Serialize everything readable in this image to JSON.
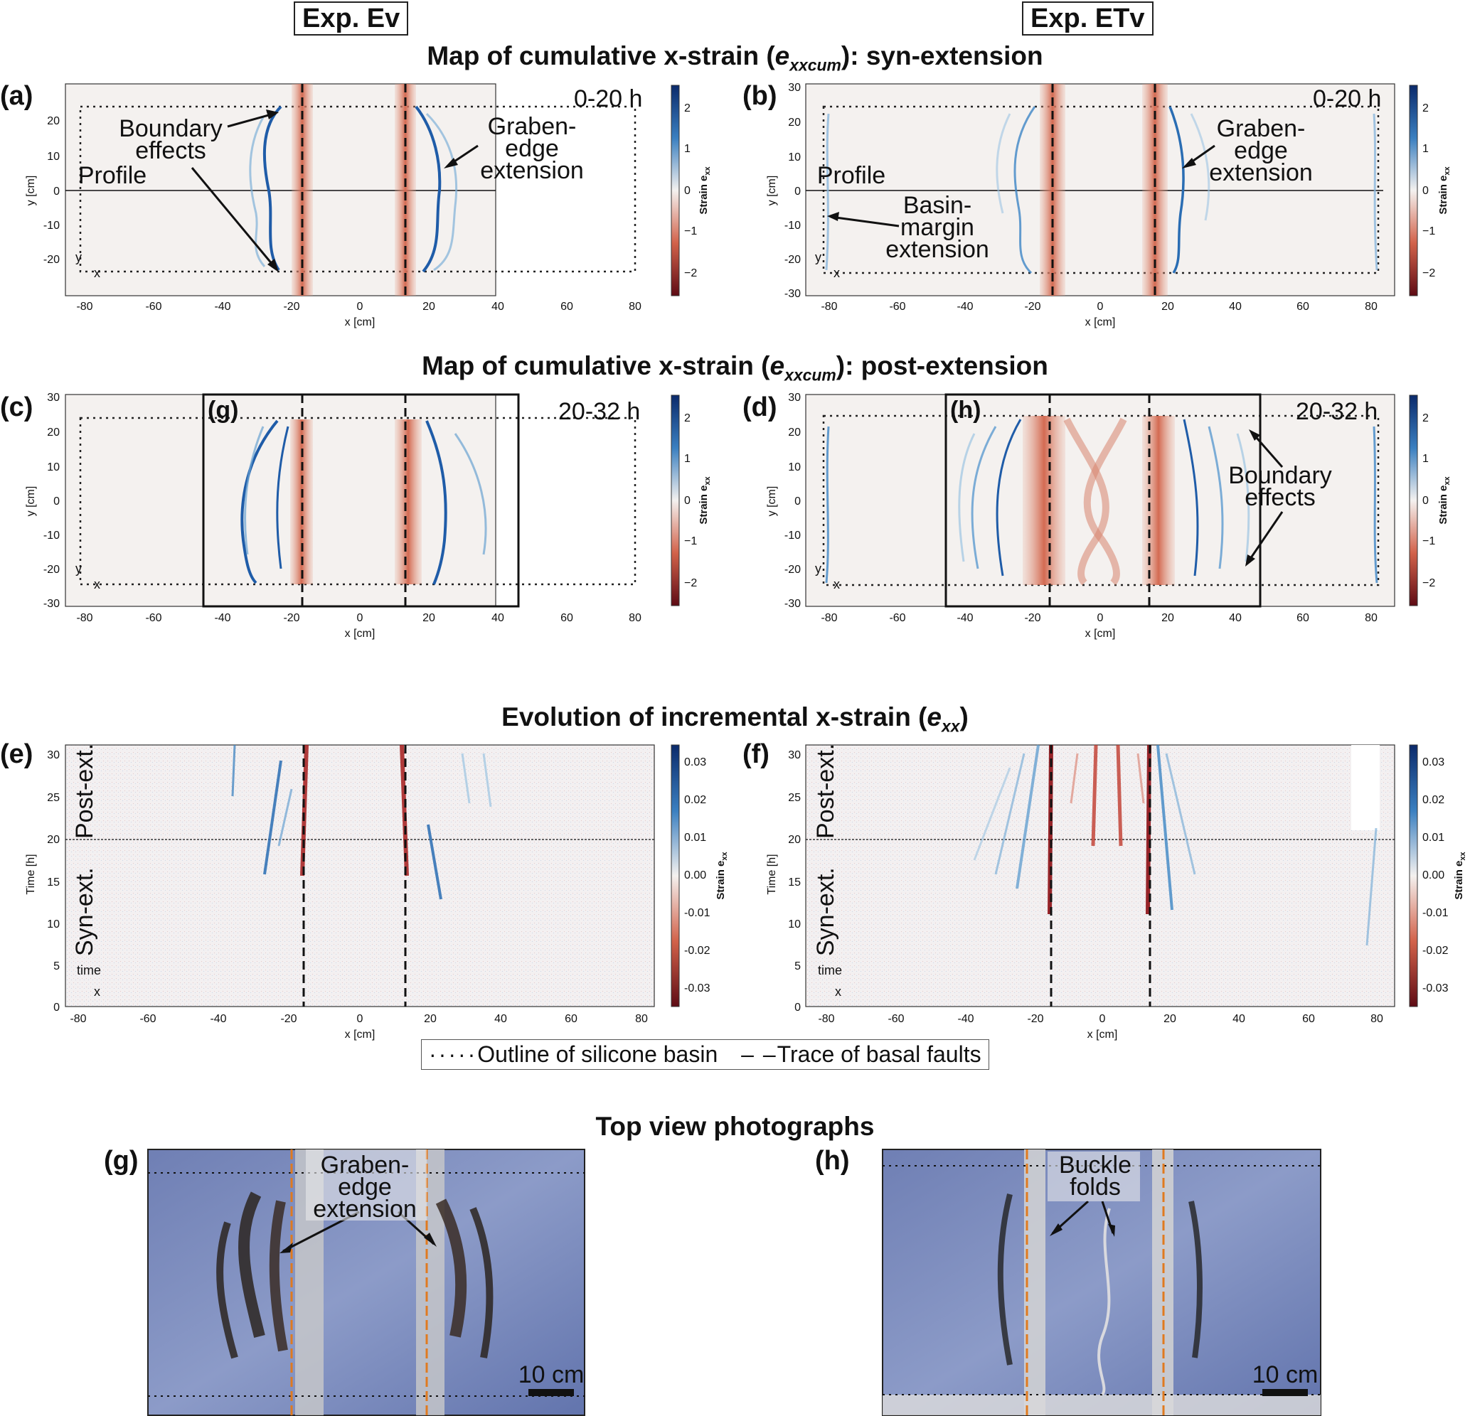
{
  "header": {
    "exp_left": "Exp. Ev",
    "exp_right": "Exp. ETv"
  },
  "sections": {
    "syn": {
      "prefix": "Map of cumulative x-strain (",
      "symbol": "e",
      "sub": "xxcum",
      "suffix": "): syn-extension"
    },
    "post": {
      "prefix": "Map of cumulative x-strain (",
      "symbol": "e",
      "sub": "xxcum",
      "suffix": "): post-extension"
    },
    "evol": {
      "prefix": "Evolution of incremental x-strain (",
      "symbol": "e",
      "sub": "xx",
      "suffix": ")"
    },
    "photos": "Top view photographs"
  },
  "panels": {
    "a": {
      "label": "(a)",
      "time": "0-20 h",
      "ann_boundary": [
        "Boundary",
        "effects"
      ],
      "ann_graben": [
        "Graben-",
        "edge",
        "extension"
      ],
      "ann_profile": "Profile"
    },
    "b": {
      "label": "(b)",
      "time": "0-20 h",
      "ann_graben": [
        "Graben-",
        "edge",
        "extension"
      ],
      "ann_profile": "Profile",
      "ann_basin": [
        "Basin-",
        "margin",
        "extension"
      ]
    },
    "c": {
      "label": "(c)",
      "time": "20-32 h",
      "inset": "(g)"
    },
    "d": {
      "label": "(d)",
      "time": "20-32 h",
      "inset": "(h)",
      "ann_boundary": [
        "Boundary",
        "effects"
      ]
    },
    "e": {
      "label": "(e)",
      "post": "Post-ext.",
      "syn": "Syn-ext."
    },
    "f": {
      "label": "(f)",
      "post": "Post-ext.",
      "syn": "Syn-ext."
    },
    "g": {
      "label": "(g)",
      "ann": [
        "Graben-",
        "edge",
        "extension"
      ],
      "scale": "10 cm"
    },
    "h": {
      "label": "(h)",
      "ann": [
        "Buckle",
        "folds"
      ],
      "scale": "10 cm"
    }
  },
  "axes": {
    "x_label": "x [cm]",
    "y_label": "y [cm]",
    "t_label": "Time [h]",
    "x_ticks": [
      "-80",
      "-60",
      "-40",
      "-20",
      "0",
      "20",
      "40",
      "60",
      "80"
    ],
    "y_ticks_a": [
      "20",
      "10",
      "0",
      "-10",
      "-20"
    ],
    "y_ticks_b": [
      "30",
      "20",
      "10",
      "0",
      "-10",
      "-20",
      "-30"
    ],
    "t_ticks": [
      "30",
      "25",
      "20",
      "15",
      "10",
      "5",
      "0"
    ],
    "coord_y": "y",
    "coord_x": "x",
    "coord_time": "time"
  },
  "colorbars": {
    "cum": {
      "label": "Strain e",
      "sub": "xx",
      "ticks": [
        "2",
        "1",
        "0",
        "−1",
        "−2"
      ]
    },
    "inc": {
      "label": "Strain e",
      "sub": "xx",
      "ticks": [
        "0.03",
        "0.02",
        "0.01",
        "0.00",
        "-0.01",
        "-0.02",
        "-0.03"
      ]
    }
  },
  "legend": {
    "outline": "Outline of silicone basin",
    "faults": "Trace of basal faults"
  },
  "colors": {
    "extension_blue": "#2b6cb0",
    "compression_red": "#c0392b",
    "background": "#f4f1ef"
  }
}
